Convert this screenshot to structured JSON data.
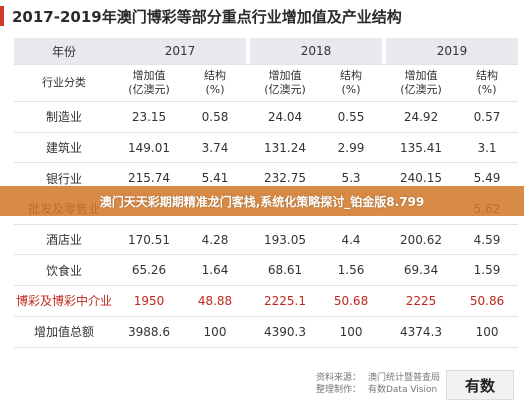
{
  "title": "2017-2019年澳门博彩等部分重点行业增加值及产业结构",
  "header": {
    "year_label": "年份",
    "category_label": "行业分类",
    "years": [
      "2017",
      "2018",
      "2019"
    ],
    "value_label": "增加值\n(亿澳元)",
    "pct_label": "结构\n(%)"
  },
  "rows": [
    {
      "name": "制造业",
      "v2017": "23.15",
      "p2017": "0.58",
      "v2018": "24.04",
      "p2018": "0.55",
      "v2019": "24.92",
      "p2019": "0.57"
    },
    {
      "name": "建筑业",
      "v2017": "149.01",
      "p2017": "3.74",
      "v2018": "131.24",
      "p2018": "2.99",
      "v2019": "135.41",
      "p2019": "3.1"
    },
    {
      "name": "银行业",
      "v2017": "215.74",
      "p2017": "5.41",
      "v2018": "232.75",
      "p2018": "5.3",
      "v2019": "240.15",
      "p2019": "5.49"
    },
    {
      "name": "批发及零售业",
      "v2017": "",
      "p2017": "",
      "v2018": "",
      "p2018": "",
      "v2019": "",
      "p2019": "5.62"
    },
    {
      "name": "酒店业",
      "v2017": "170.51",
      "p2017": "4.28",
      "v2018": "193.05",
      "p2018": "4.4",
      "v2019": "200.62",
      "p2019": "4.59"
    },
    {
      "name": "饮食业",
      "v2017": "65.26",
      "p2017": "1.64",
      "v2018": "68.61",
      "p2018": "1.56",
      "v2019": "69.34",
      "p2019": "1.59"
    },
    {
      "name": "博彩及博彩中介业",
      "v2017": "1950",
      "p2017": "48.88",
      "v2018": "2225.1",
      "p2018": "50.68",
      "v2019": "2225",
      "p2019": "50.86"
    },
    {
      "name": "增加值总额",
      "v2017": "3988.6",
      "p2017": "100",
      "v2018": "4390.3",
      "p2018": "100",
      "v2019": "4374.3",
      "p2019": "100"
    }
  ],
  "banner": "澳门天天彩期期精准龙门客栈,系统化策略探讨_铂金版8.799",
  "footer": {
    "source_label": "资料来源：",
    "source_value": "澳门统计暨普查局",
    "made_label": "整理制作：",
    "made_value": "有数Data Vision",
    "brand": "有数"
  },
  "colors": {
    "highlight": "#c0281d",
    "header_bg": "#e7e9ec",
    "banner": "#d27828"
  }
}
